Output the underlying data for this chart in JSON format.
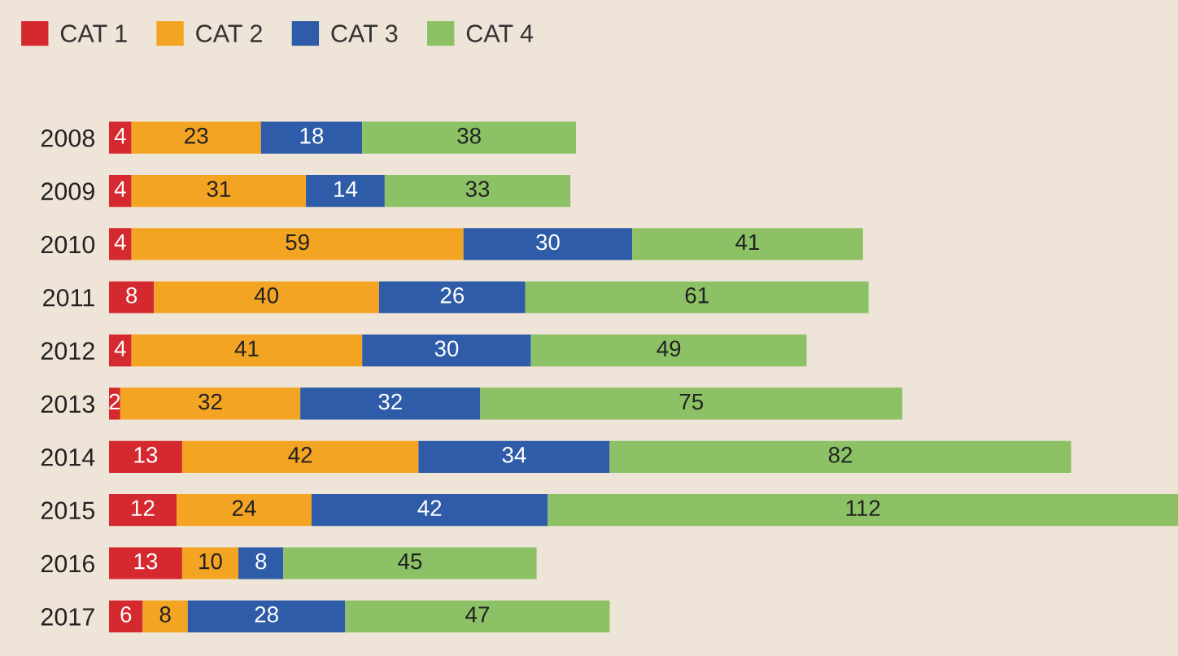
{
  "chart_data": {
    "type": "bar",
    "orientation": "horizontal",
    "stacked": true,
    "data_labels": true,
    "legend": "top left",
    "grid": false,
    "tick_labels": "y",
    "categories": [
      "2008",
      "2009",
      "2010",
      "2011",
      "2012",
      "2013",
      "2014",
      "2015",
      "2016",
      "2017"
    ],
    "series": [
      {
        "name": "CAT 1",
        "color": "#d42a2f",
        "values": [
          4,
          4,
          4,
          8,
          4,
          2,
          13,
          12,
          13,
          6
        ]
      },
      {
        "name": "CAT 2",
        "color": "#f4a423",
        "values": [
          23,
          31,
          59,
          40,
          41,
          32,
          42,
          24,
          10,
          8
        ]
      },
      {
        "name": "CAT 3",
        "color": "#2f5ca8",
        "values": [
          18,
          14,
          30,
          26,
          30,
          32,
          34,
          42,
          8,
          28
        ]
      },
      {
        "name": "CAT 4",
        "color": "#8cc265",
        "values": [
          38,
          33,
          41,
          61,
          49,
          75,
          82,
          112,
          45,
          47
        ]
      }
    ]
  }
}
